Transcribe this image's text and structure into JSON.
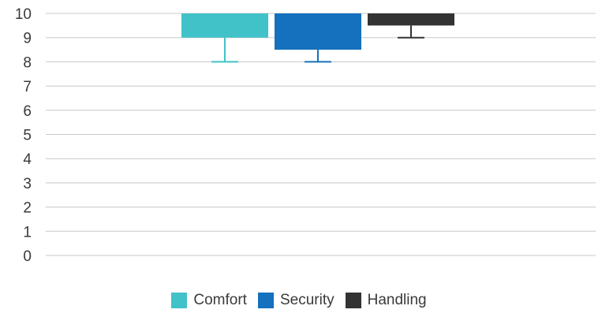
{
  "chart_data": {
    "type": "bar",
    "ylim": [
      0,
      10
    ],
    "yticks": [
      "0",
      "1",
      "2",
      "3",
      "4",
      "5",
      "6",
      "7",
      "8",
      "9",
      "10"
    ],
    "grid": true,
    "legend_position": "bottom",
    "series": [
      {
        "name": "Comfort",
        "color": "#41c2c9",
        "bar_from": 10,
        "bar_to": 9.0,
        "whisker_to": 8.0
      },
      {
        "name": "Security",
        "color": "#1570bd",
        "bar_from": 10,
        "bar_to": 8.5,
        "whisker_to": 8.0
      },
      {
        "name": "Handling",
        "color": "#333333",
        "bar_from": 10,
        "bar_to": 9.5,
        "whisker_to": 9.0
      }
    ]
  }
}
